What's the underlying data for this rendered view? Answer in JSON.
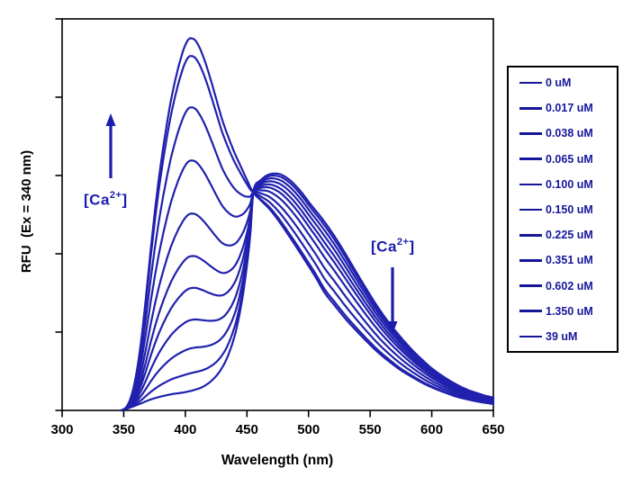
{
  "annotations": {
    "increase": {
      "pre": "[Ca",
      "sup": "2+",
      "post": "]",
      "arrow_direction": "up"
    },
    "decrease": {
      "pre": "[Ca",
      "sup": "2+",
      "post": "]",
      "arrow_direction": "down"
    }
  },
  "colors": {
    "line": "#2121AE",
    "annotation": "#1B1BAD",
    "legend_text": "#16169B",
    "axis": "#000000",
    "background": "#FFFFFF"
  },
  "chart_data": {
    "type": "line",
    "title": "",
    "xlabel": "Wavelength (nm)",
    "ylabel": "RFU  (Ex = 340 nm)",
    "x_range": [
      300,
      650
    ],
    "x_ticks": [
      300,
      350,
      400,
      450,
      500,
      550,
      600,
      650
    ],
    "y_tick_count": 6,
    "y_numeric_labels_shown": false,
    "y_range_relative": [
      0,
      1
    ],
    "isosbestic_point_nm": 455,
    "emission_peak_ca_bound_nm": 403,
    "emission_peak_ca_free_nm": 473,
    "legend_unit": "uM",
    "series": [
      {
        "name": "0 uM",
        "concentration_uM": 0,
        "ca_bound_fraction": 0
      },
      {
        "name": "0.017 uM",
        "concentration_uM": 0.017,
        "ca_bound_fraction": 0.05
      },
      {
        "name": "0.038 uM",
        "concentration_uM": 0.038,
        "ca_bound_fraction": 0.12
      },
      {
        "name": "0.065 uM",
        "concentration_uM": 0.065,
        "ca_bound_fraction": 0.2
      },
      {
        "name": "0.100 uM",
        "concentration_uM": 0.1,
        "ca_bound_fraction": 0.29
      },
      {
        "name": "0.150 uM",
        "concentration_uM": 0.15,
        "ca_bound_fraction": 0.38
      },
      {
        "name": "0.225 uM",
        "concentration_uM": 0.225,
        "ca_bound_fraction": 0.5
      },
      {
        "name": "0.351 uM",
        "concentration_uM": 0.351,
        "ca_bound_fraction": 0.65
      },
      {
        "name": "0.602 uM",
        "concentration_uM": 0.602,
        "ca_bound_fraction": 0.8
      },
      {
        "name": "1.350 uM",
        "concentration_uM": 1.35,
        "ca_bound_fraction": 0.945
      },
      {
        "name": "39 uM",
        "concentration_uM": 39,
        "ca_bound_fraction": 0.995
      }
    ],
    "component_spectra": {
      "description": "intensity(nm) = free(nm) + ca_bound_fraction * (bound(nm) - free(nm)); values are fractions of full plot height; all curves cross at the 455 nm isosbestic point (0.557)",
      "ca_bound": [
        [
          348,
          0
        ],
        [
          352,
          0.008
        ],
        [
          356,
          0.035
        ],
        [
          360,
          0.09
        ],
        [
          364,
          0.175
        ],
        [
          368,
          0.29
        ],
        [
          372,
          0.415
        ],
        [
          376,
          0.53
        ],
        [
          380,
          0.63
        ],
        [
          384,
          0.715
        ],
        [
          388,
          0.79
        ],
        [
          392,
          0.85
        ],
        [
          396,
          0.9
        ],
        [
          400,
          0.938
        ],
        [
          404,
          0.955
        ],
        [
          408,
          0.95
        ],
        [
          412,
          0.928
        ],
        [
          416,
          0.895
        ],
        [
          420,
          0.855
        ],
        [
          425,
          0.8
        ],
        [
          430,
          0.745
        ],
        [
          435,
          0.7
        ],
        [
          440,
          0.66
        ],
        [
          445,
          0.625
        ],
        [
          450,
          0.59
        ],
        [
          455,
          0.557
        ],
        [
          461,
          0.537
        ],
        [
          468,
          0.515
        ],
        [
          475,
          0.487
        ],
        [
          482,
          0.455
        ],
        [
          490,
          0.417
        ],
        [
          498,
          0.378
        ],
        [
          506,
          0.338
        ],
        [
          513,
          0.3
        ],
        [
          521,
          0.268
        ],
        [
          530,
          0.233
        ],
        [
          539,
          0.202
        ],
        [
          548,
          0.173
        ],
        [
          557,
          0.146
        ],
        [
          566,
          0.123
        ],
        [
          575,
          0.102
        ],
        [
          584,
          0.085
        ],
        [
          593,
          0.069
        ],
        [
          602,
          0.056
        ],
        [
          611,
          0.045
        ],
        [
          620,
          0.035
        ],
        [
          629,
          0.028
        ],
        [
          638,
          0.022
        ],
        [
          644,
          0.019
        ],
        [
          650,
          0.016
        ]
      ],
      "ca_free": [
        [
          348,
          0
        ],
        [
          356,
          0.008
        ],
        [
          364,
          0.018
        ],
        [
          372,
          0.028
        ],
        [
          381,
          0.036
        ],
        [
          390,
          0.042
        ],
        [
          399,
          0.046
        ],
        [
          407,
          0.052
        ],
        [
          414,
          0.06
        ],
        [
          421,
          0.075
        ],
        [
          428,
          0.1
        ],
        [
          434,
          0.135
        ],
        [
          440,
          0.19
        ],
        [
          443,
          0.23
        ],
        [
          447,
          0.3
        ],
        [
          450,
          0.37
        ],
        [
          453,
          0.46
        ],
        [
          455,
          0.557
        ],
        [
          460,
          0.585
        ],
        [
          466,
          0.6
        ],
        [
          472,
          0.605
        ],
        [
          478,
          0.602
        ],
        [
          486,
          0.585
        ],
        [
          494,
          0.558
        ],
        [
          502,
          0.525
        ],
        [
          511,
          0.49
        ],
        [
          520,
          0.45
        ],
        [
          529,
          0.405
        ],
        [
          538,
          0.357
        ],
        [
          547,
          0.31
        ],
        [
          556,
          0.265
        ],
        [
          565,
          0.225
        ],
        [
          574,
          0.19
        ],
        [
          583,
          0.158
        ],
        [
          592,
          0.13
        ],
        [
          601,
          0.105
        ],
        [
          610,
          0.085
        ],
        [
          619,
          0.068
        ],
        [
          628,
          0.054
        ],
        [
          637,
          0.044
        ],
        [
          644,
          0.037
        ],
        [
          650,
          0.033
        ]
      ]
    }
  }
}
